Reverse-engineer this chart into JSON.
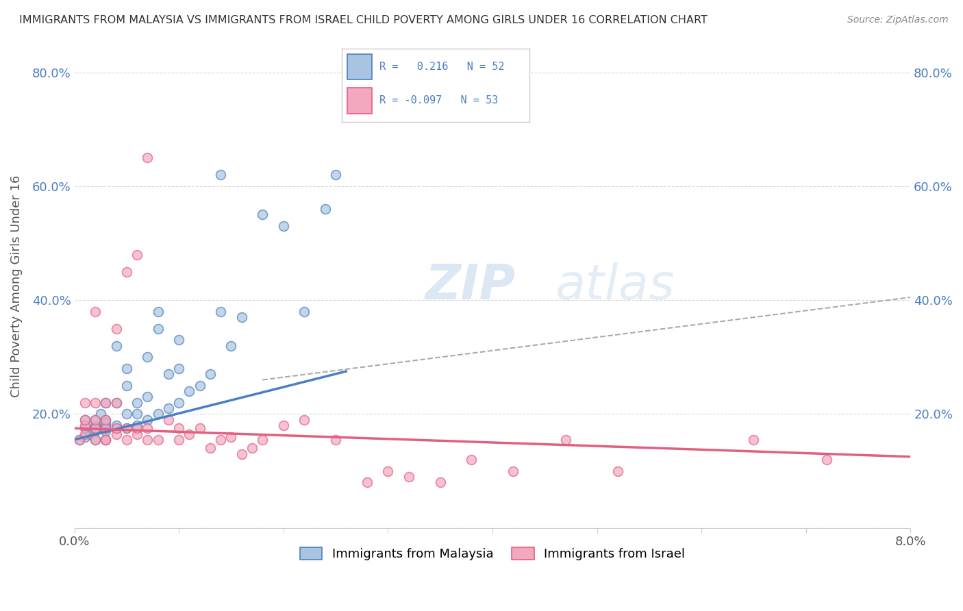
{
  "title": "IMMIGRANTS FROM MALAYSIA VS IMMIGRANTS FROM ISRAEL CHILD POVERTY AMONG GIRLS UNDER 16 CORRELATION CHART",
  "source": "Source: ZipAtlas.com",
  "ylabel": "Child Poverty Among Girls Under 16",
  "xlim": [
    0.0,
    0.08
  ],
  "ylim": [
    0.0,
    0.85
  ],
  "xticks": [
    0.0,
    0.01,
    0.02,
    0.03,
    0.04,
    0.05,
    0.06,
    0.07,
    0.08
  ],
  "yticks": [
    0.0,
    0.2,
    0.4,
    0.6,
    0.8
  ],
  "ytick_labels_left": [
    "",
    "20.0%",
    "40.0%",
    "60.0%",
    "80.0%"
  ],
  "ytick_labels_right": [
    "",
    "20.0%",
    "40.0%",
    "60.0%",
    "80.0%"
  ],
  "malaysia_R": "0.216",
  "malaysia_N": "52",
  "israel_R": "-0.097",
  "israel_N": "53",
  "malaysia_dot_color": "#a8c4e0",
  "israel_dot_color": "#f4a8c0",
  "malaysia_line_color": "#4a7fc1",
  "israel_line_color": "#e06080",
  "trend_line_color": "#aaaaaa",
  "malaysia_scatter_x": [
    0.0005,
    0.001,
    0.001,
    0.001,
    0.0015,
    0.002,
    0.002,
    0.002,
    0.002,
    0.002,
    0.0025,
    0.003,
    0.003,
    0.003,
    0.003,
    0.003,
    0.003,
    0.003,
    0.004,
    0.004,
    0.004,
    0.004,
    0.005,
    0.005,
    0.005,
    0.005,
    0.006,
    0.006,
    0.006,
    0.007,
    0.007,
    0.007,
    0.008,
    0.008,
    0.009,
    0.009,
    0.01,
    0.01,
    0.011,
    0.012,
    0.013,
    0.014,
    0.015,
    0.016,
    0.018,
    0.02,
    0.022,
    0.024,
    0.025,
    0.014,
    0.01,
    0.008
  ],
  "malaysia_scatter_y": [
    0.155,
    0.16,
    0.175,
    0.19,
    0.165,
    0.17,
    0.18,
    0.19,
    0.155,
    0.175,
    0.2,
    0.17,
    0.18,
    0.19,
    0.155,
    0.175,
    0.22,
    0.185,
    0.175,
    0.18,
    0.22,
    0.32,
    0.175,
    0.2,
    0.25,
    0.28,
    0.18,
    0.2,
    0.22,
    0.19,
    0.23,
    0.3,
    0.2,
    0.35,
    0.21,
    0.27,
    0.22,
    0.28,
    0.24,
    0.25,
    0.27,
    0.38,
    0.32,
    0.37,
    0.55,
    0.53,
    0.38,
    0.56,
    0.62,
    0.62,
    0.33,
    0.38
  ],
  "israel_scatter_x": [
    0.0005,
    0.001,
    0.001,
    0.001,
    0.001,
    0.002,
    0.002,
    0.002,
    0.002,
    0.002,
    0.003,
    0.003,
    0.003,
    0.003,
    0.003,
    0.004,
    0.004,
    0.004,
    0.004,
    0.005,
    0.005,
    0.005,
    0.006,
    0.006,
    0.006,
    0.007,
    0.007,
    0.007,
    0.008,
    0.009,
    0.01,
    0.01,
    0.011,
    0.012,
    0.013,
    0.014,
    0.015,
    0.016,
    0.017,
    0.018,
    0.02,
    0.022,
    0.025,
    0.028,
    0.03,
    0.032,
    0.035,
    0.038,
    0.042,
    0.047,
    0.052,
    0.065,
    0.072
  ],
  "israel_scatter_y": [
    0.155,
    0.165,
    0.18,
    0.19,
    0.22,
    0.175,
    0.155,
    0.19,
    0.22,
    0.38,
    0.155,
    0.175,
    0.19,
    0.22,
    0.155,
    0.165,
    0.175,
    0.22,
    0.35,
    0.155,
    0.175,
    0.45,
    0.165,
    0.175,
    0.48,
    0.155,
    0.175,
    0.65,
    0.155,
    0.19,
    0.155,
    0.175,
    0.165,
    0.175,
    0.14,
    0.155,
    0.16,
    0.13,
    0.14,
    0.155,
    0.18,
    0.19,
    0.155,
    0.08,
    0.1,
    0.09,
    0.08,
    0.12,
    0.1,
    0.155,
    0.1,
    0.155,
    0.12
  ],
  "malaysia_trend_x0": 0.0,
  "malaysia_trend_y0": 0.155,
  "malaysia_trend_x1": 0.026,
  "malaysia_trend_y1": 0.275,
  "dashed_trend_x0": 0.018,
  "dashed_trend_y0": 0.26,
  "dashed_trend_x1": 0.08,
  "dashed_trend_y1": 0.405,
  "israel_trend_x0": 0.0,
  "israel_trend_y0": 0.175,
  "israel_trend_x1": 0.08,
  "israel_trend_y1": 0.125,
  "background_color": "#ffffff",
  "grid_color": "#cccccc",
  "tick_label_color": "#4a7fc1",
  "axis_label_color": "#555555"
}
